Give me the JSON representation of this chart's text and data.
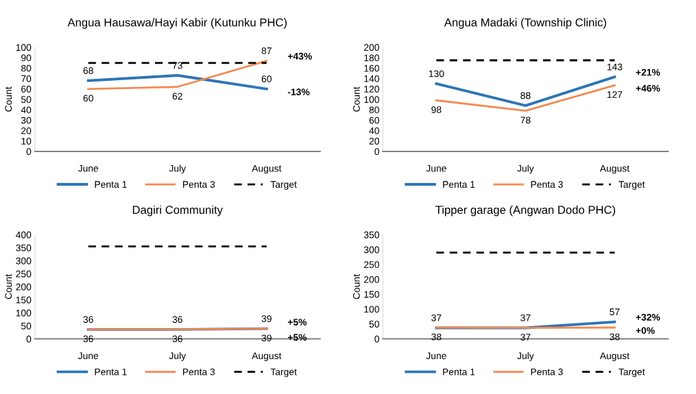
{
  "chart_data": [
    {
      "type": "line",
      "title": "Angua Hausawa/Hayi Kabir (Kutunku PHC)",
      "ylabel": "Count",
      "categories": [
        "June",
        "July",
        "August"
      ],
      "ylim": [
        0,
        100
      ],
      "yticks": [
        0,
        10,
        20,
        30,
        40,
        50,
        60,
        70,
        80,
        90,
        100
      ],
      "grid": false,
      "legend": "bottom",
      "series": [
        {
          "name": "Penta 1",
          "color": "#2e75b6",
          "values": [
            68,
            73,
            60
          ],
          "value_labels": [
            "68",
            "73",
            "60"
          ]
        },
        {
          "name": "Penta 3",
          "color": "#f4894f",
          "values": [
            60,
            62,
            87
          ],
          "value_labels": [
            "60",
            "62",
            "87"
          ]
        },
        {
          "name": "Target",
          "color": "#000000",
          "line_style": "dashed",
          "values": [
            85,
            85,
            85
          ]
        }
      ],
      "annotations": [
        {
          "text": "+43%",
          "x": "August",
          "y": 87
        },
        {
          "text": "-13%",
          "x": "August",
          "y": 60
        }
      ]
    },
    {
      "type": "line",
      "title": "Angua Madaki (Township Clinic)",
      "ylabel": "Count",
      "categories": [
        "June",
        "July",
        "August"
      ],
      "ylim": [
        0,
        200
      ],
      "yticks": [
        0,
        20,
        40,
        60,
        80,
        100,
        120,
        140,
        160,
        180,
        200
      ],
      "grid": false,
      "legend": "bottom",
      "series": [
        {
          "name": "Penta 1",
          "color": "#2e75b6",
          "values": [
            130,
            88,
            143
          ],
          "value_labels": [
            "130",
            "88",
            "143"
          ]
        },
        {
          "name": "Penta 3",
          "color": "#f4894f",
          "values": [
            98,
            78,
            127
          ],
          "value_labels": [
            "98",
            "78",
            "127"
          ]
        },
        {
          "name": "Target",
          "color": "#000000",
          "line_style": "dashed",
          "values": [
            175,
            175,
            175
          ]
        }
      ],
      "annotations": [
        {
          "text": "+21%",
          "x": "August",
          "y": 143
        },
        {
          "text": "+46%",
          "x": "August",
          "y": 127
        }
      ]
    },
    {
      "type": "line",
      "title": "Dagiri Community",
      "ylabel": "Count",
      "categories": [
        "June",
        "July",
        "August"
      ],
      "ylim": [
        0,
        400
      ],
      "yticks": [
        0,
        50,
        100,
        150,
        200,
        250,
        300,
        350,
        400
      ],
      "grid": false,
      "legend": "bottom",
      "series": [
        {
          "name": "Penta 1",
          "color": "#2e75b6",
          "values": [
            36,
            36,
            39
          ],
          "value_labels": [
            "36",
            "36",
            "39"
          ]
        },
        {
          "name": "Penta 3",
          "color": "#f4894f",
          "values": [
            36,
            36,
            39
          ],
          "value_labels": [
            "36",
            "36",
            "39"
          ]
        },
        {
          "name": "Target",
          "color": "#000000",
          "line_style": "dashed",
          "values": [
            355,
            355,
            355
          ]
        }
      ],
      "annotations": [
        {
          "text": "+5%",
          "x": "August",
          "y": 39
        },
        {
          "text": "+5%",
          "x": "August",
          "y": 39
        }
      ]
    },
    {
      "type": "line",
      "title": "Tipper garage (Angwan Dodo PHC)",
      "ylabel": "Count",
      "categories": [
        "June",
        "July",
        "August"
      ],
      "ylim": [
        0,
        350
      ],
      "yticks": [
        0,
        50,
        100,
        150,
        200,
        250,
        300,
        350
      ],
      "grid": false,
      "legend": "bottom",
      "series": [
        {
          "name": "Penta 1",
          "color": "#2e75b6",
          "values": [
            37,
            37,
            57
          ],
          "value_labels": [
            "37",
            "37",
            "57"
          ]
        },
        {
          "name": "Penta 3",
          "color": "#f4894f",
          "values": [
            38,
            37,
            38
          ],
          "value_labels": [
            "38",
            "37",
            "38"
          ]
        },
        {
          "name": "Target",
          "color": "#000000",
          "line_style": "dashed",
          "values": [
            290,
            290,
            290
          ]
        }
      ],
      "annotations": [
        {
          "text": "+32%",
          "x": "August",
          "y": 57
        },
        {
          "text": "+0%",
          "x": "August",
          "y": 38
        }
      ]
    }
  ]
}
